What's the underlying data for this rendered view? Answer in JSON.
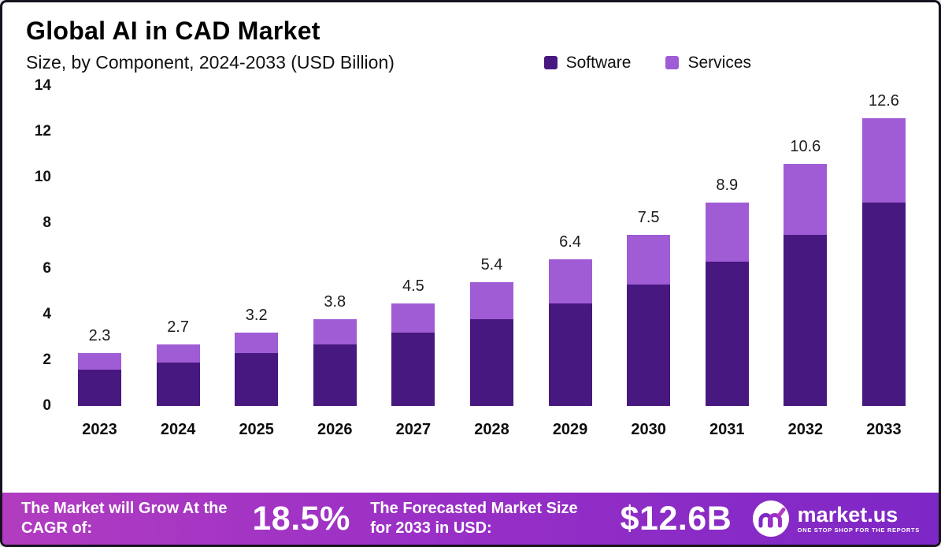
{
  "header": {
    "title": "Global AI in CAD Market",
    "subtitle": "Size, by Component, 2024-2033 (USD Billion)"
  },
  "chart_data": {
    "type": "bar",
    "stacked": true,
    "title": "Global AI in CAD Market Size, by Component, 2024-2033 (USD Billion)",
    "categories": [
      "2023",
      "2024",
      "2025",
      "2026",
      "2027",
      "2028",
      "2029",
      "2030",
      "2031",
      "2032",
      "2033"
    ],
    "series": [
      {
        "name": "Software",
        "color": "#47187f",
        "values": [
          1.6,
          1.9,
          2.3,
          2.7,
          3.2,
          3.8,
          4.5,
          5.3,
          6.3,
          7.5,
          8.9
        ]
      },
      {
        "name": "Services",
        "color": "#a05cd5",
        "values": [
          0.7,
          0.8,
          0.9,
          1.1,
          1.3,
          1.6,
          1.9,
          2.2,
          2.6,
          3.1,
          3.7
        ]
      }
    ],
    "totals": [
      2.3,
      2.7,
      3.2,
      3.8,
      4.5,
      5.4,
      6.4,
      7.5,
      8.9,
      10.6,
      12.6
    ],
    "xlabel": "",
    "ylabel": "",
    "ylim": [
      0,
      14
    ],
    "yticks": [
      0,
      2,
      4,
      6,
      8,
      10,
      12,
      14
    ],
    "grid": false,
    "legend_position": "top-right"
  },
  "footer": {
    "cagr_label": "The Market will Grow At the CAGR of:",
    "cagr_value": "18.5%",
    "forecast_label": "The Forecasted Market Size for 2033 in USD:",
    "forecast_value": "$12.6B",
    "brand": "market.us",
    "brand_tagline": "ONE STOP SHOP FOR THE REPORTS"
  }
}
